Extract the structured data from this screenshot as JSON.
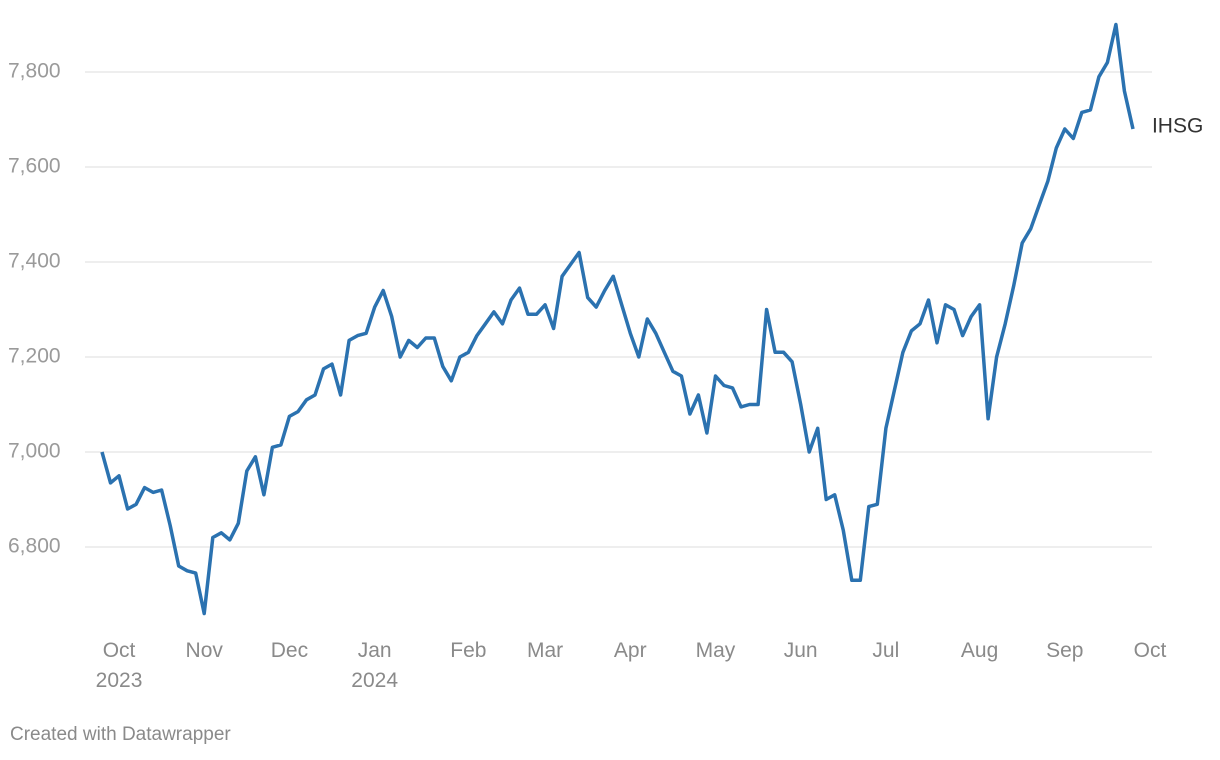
{
  "chart_data": {
    "type": "line",
    "credit": "Created with Datawrapper",
    "categories": [
      null,
      null,
      "Oct\n2023",
      null,
      null,
      null,
      null,
      null,
      null,
      null,
      null,
      null,
      "Nov",
      null,
      null,
      null,
      null,
      null,
      null,
      null,
      null,
      null,
      "Dec",
      null,
      null,
      null,
      null,
      null,
      null,
      null,
      null,
      null,
      "Jan\n2024",
      null,
      null,
      null,
      null,
      null,
      null,
      null,
      null,
      null,
      null,
      "Feb",
      null,
      null,
      null,
      null,
      null,
      null,
      null,
      null,
      "Mar",
      null,
      null,
      null,
      null,
      null,
      null,
      null,
      null,
      null,
      "Apr",
      null,
      null,
      null,
      null,
      null,
      null,
      null,
      null,
      null,
      "May",
      null,
      null,
      null,
      null,
      null,
      null,
      null,
      null,
      null,
      "Jun",
      null,
      null,
      null,
      null,
      null,
      null,
      null,
      null,
      null,
      "Jul",
      null,
      null,
      null,
      null,
      null,
      null,
      null,
      null,
      null,
      null,
      "Aug",
      null,
      null,
      null,
      null,
      null,
      null,
      null,
      null,
      null,
      "Sep",
      null,
      null,
      null,
      null,
      null,
      null,
      null,
      null,
      null,
      "Oct"
    ],
    "series": [
      {
        "name": "IHSG",
        "color": "#2b72b0",
        "values": [
          7000,
          6935,
          6950,
          6880,
          6890,
          6925,
          6915,
          6920,
          6845,
          6760,
          6750,
          6745,
          6660,
          6820,
          6830,
          6815,
          6850,
          6960,
          6990,
          6910,
          7010,
          7015,
          7075,
          7085,
          7110,
          7120,
          7175,
          7185,
          7120,
          7235,
          7245,
          7250,
          7305,
          7340,
          7285,
          7200,
          7235,
          7220,
          7240,
          7240,
          7180,
          7150,
          7200,
          7210,
          7245,
          7270,
          7295,
          7270,
          7320,
          7345,
          7290,
          7290,
          7310,
          7260,
          7370,
          7395,
          7420,
          7325,
          7305,
          7340,
          7370,
          7310,
          7250,
          7200,
          7280,
          7250,
          7210,
          7170,
          7160,
          7080,
          7120,
          7040,
          7160,
          7140,
          7135,
          7095,
          7100,
          7100,
          7300,
          7210,
          7210,
          7190,
          7100,
          7000,
          7050,
          6900,
          6910,
          6835,
          6730,
          6730,
          6885,
          6890,
          7050,
          7130,
          7210,
          7255,
          7270,
          7320,
          7230,
          7310,
          7300,
          7245,
          7285,
          7310,
          7070,
          7200,
          7270,
          7350,
          7440,
          7470,
          7520,
          7570,
          7640,
          7680,
          7660,
          7715,
          7720,
          7790,
          7820,
          7900,
          7760,
          7680,
          null,
          null
        ]
      }
    ],
    "ylim": [
      6620,
      7920
    ],
    "yticks": [
      {
        "value": 6800,
        "label": "6,800"
      },
      {
        "value": 7000,
        "label": "7,000"
      },
      {
        "value": 7200,
        "label": "7,200"
      },
      {
        "value": 7400,
        "label": "7,400"
      },
      {
        "value": 7600,
        "label": "7,600"
      },
      {
        "value": 7800,
        "label": "7,800"
      }
    ],
    "grid": true
  }
}
